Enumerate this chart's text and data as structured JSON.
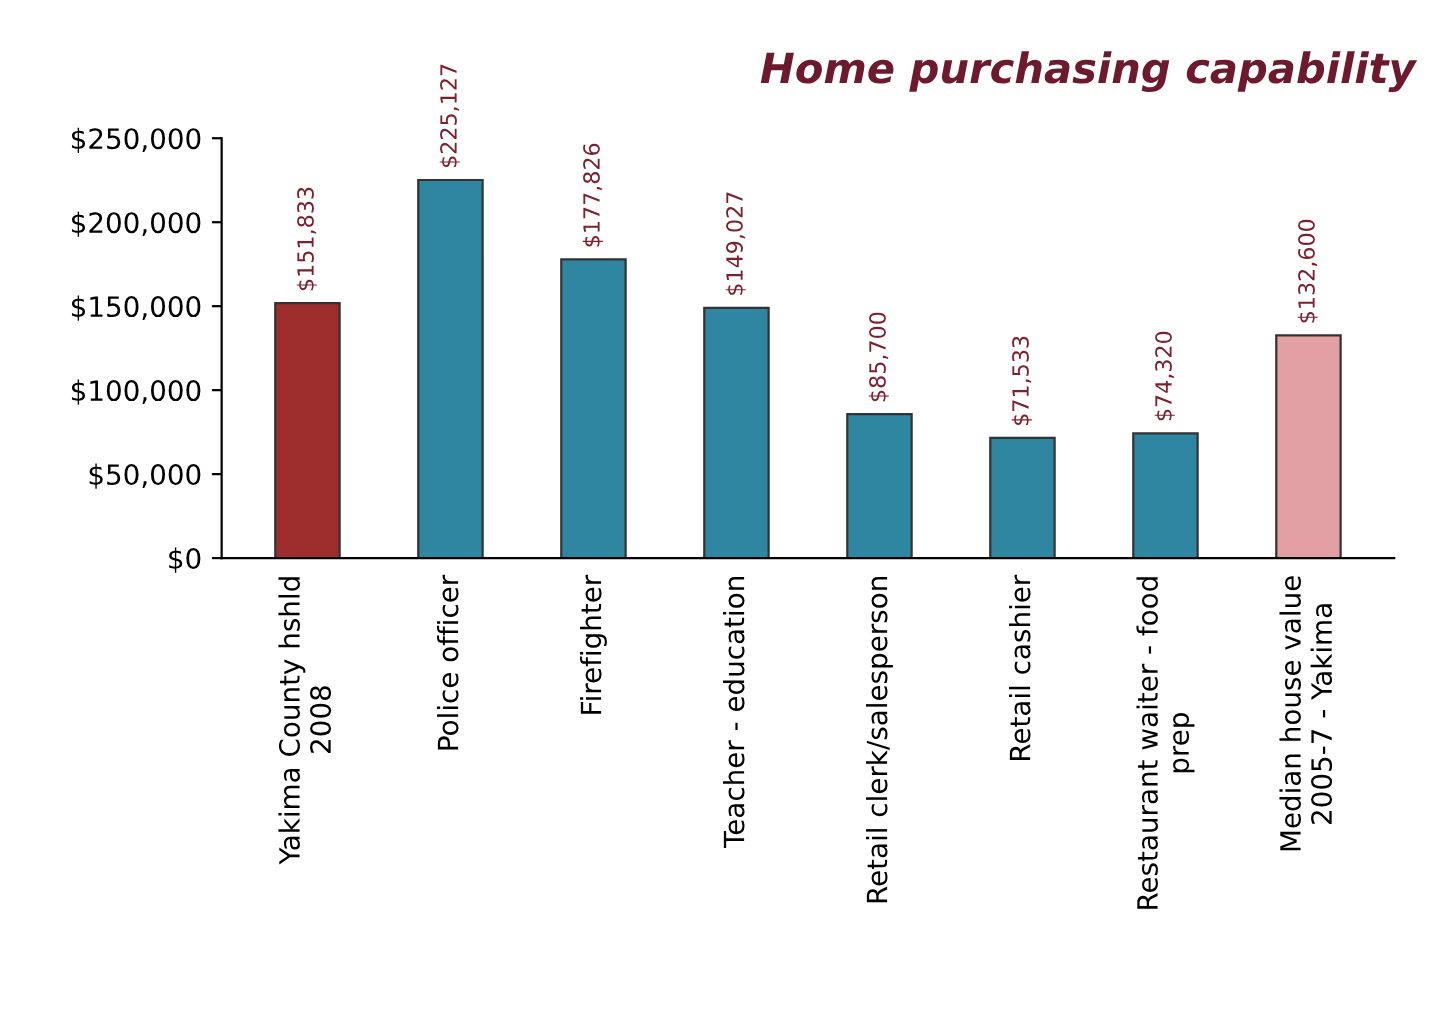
{
  "chart_data": {
    "type": "bar",
    "title": "Home purchasing capability",
    "categories": [
      "Yakima County hshld\n2008",
      "Police officer",
      "Firefighter",
      "Teacher - education",
      "Retail clerk/salesperson",
      "Retail cashier",
      "Restaurant waiter - food\nprep",
      "Median house value\n2005-7 - Yakima"
    ],
    "values": [
      151833,
      225127,
      177826,
      149027,
      85700,
      71533,
      74320,
      132600
    ],
    "value_labels": [
      "$151,833",
      "$225,127",
      "$177,826",
      "$149,027",
      "$85,700",
      "$71,533",
      "$74,320",
      "$132,600"
    ],
    "colors": [
      "#9e2e2e",
      "#2e86a0",
      "#2e86a0",
      "#2e86a0",
      "#2e86a0",
      "#2e86a0",
      "#2e86a0",
      "#e2a0a4"
    ],
    "ylim": [
      0,
      250000
    ],
    "yticks": [
      {
        "value": 0,
        "label": "$0"
      },
      {
        "value": 50000,
        "label": "$50,000"
      },
      {
        "value": 100000,
        "label": "$100,000"
      },
      {
        "value": 150000,
        "label": "$150,000"
      },
      {
        "value": 200000,
        "label": "$200,000"
      },
      {
        "value": 250000,
        "label": "$250,000"
      }
    ],
    "grid": false,
    "legend": false
  }
}
